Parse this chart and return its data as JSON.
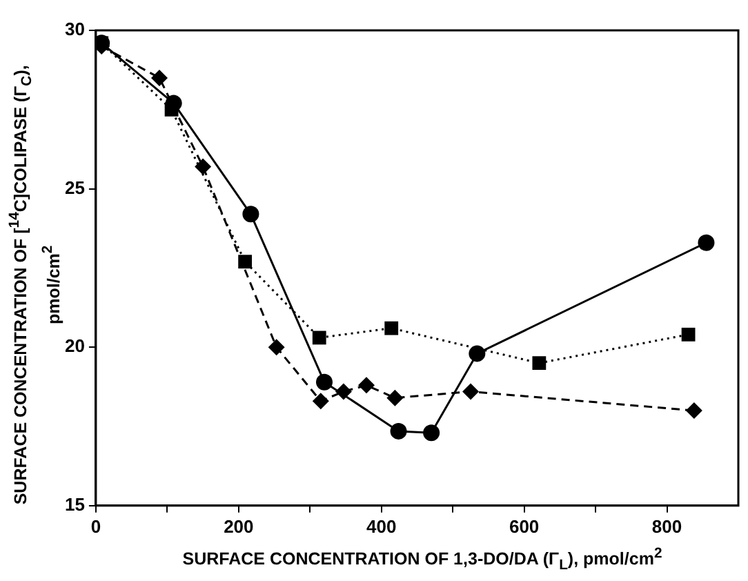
{
  "chart_data": {
    "type": "line",
    "xlabel": "SURFACE CONCENTRATION OF 1,3-DO/DA (Γ$_{L}$), pmol/cm$^{2}$",
    "ylabel": "SURFACE CONCENTRATION OF [$^{14}$C]COLIPASE (Γ$_{C}$), pmol/cm$^{2}$",
    "xlim": [
      0,
      900
    ],
    "xticks": [
      0,
      {
        "value": 100,
        "label": null
      },
      200,
      {
        "value": 300,
        "label": null
      },
      400,
      {
        "value": 500,
        "label": null
      },
      600,
      {
        "value": 700,
        "label": null
      },
      800
    ],
    "ylim": [
      15,
      30
    ],
    "yticks": [
      15,
      20,
      25,
      30
    ],
    "grid": false,
    "legend": false,
    "series": [
      {
        "color": "#000000",
        "marker": "circle",
        "line_style": "solid",
        "x": [
          8,
          109,
          217,
          320,
          424,
          470,
          534,
          855
        ],
        "values": [
          29.6,
          27.7,
          24.2,
          18.9,
          17.35,
          17.3,
          19.8,
          23.3
        ]
      },
      {
        "color": "#000000",
        "marker": "square",
        "line_style": "dotted",
        "x": [
          8,
          106,
          209,
          313,
          414,
          621,
          830
        ],
        "values": [
          29.6,
          27.5,
          22.7,
          20.3,
          20.6,
          19.5,
          20.4
        ]
      },
      {
        "color": "#000000",
        "marker": "diamond",
        "line_style": "dashed",
        "x": [
          8,
          89,
          150,
          253,
          315,
          347,
          379,
          419,
          525,
          838
        ],
        "values": [
          29.5,
          28.5,
          25.7,
          20.0,
          18.3,
          18.6,
          18.8,
          18.4,
          18.6,
          18.0
        ]
      }
    ]
  }
}
